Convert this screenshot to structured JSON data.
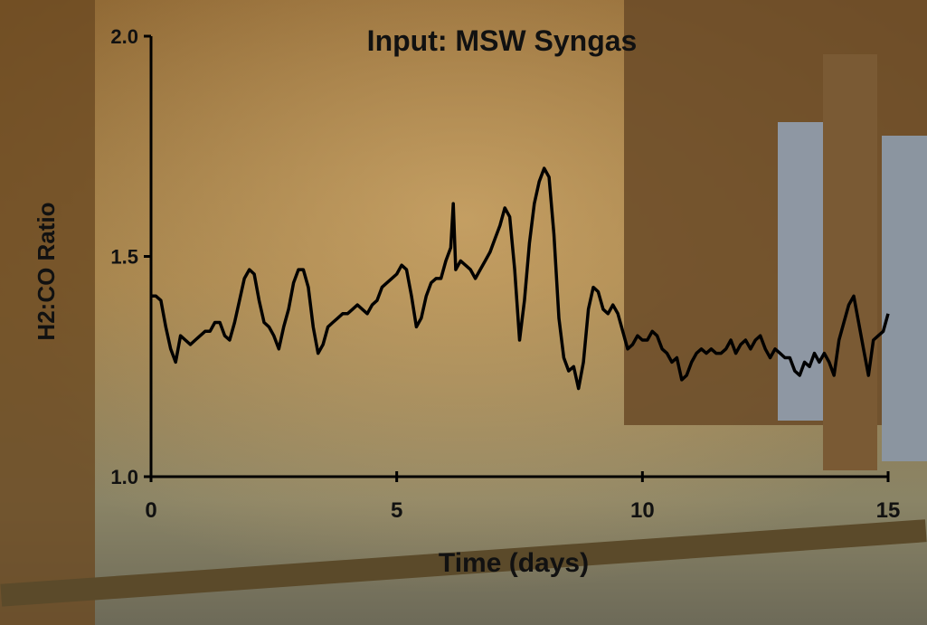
{
  "chart_data": {
    "type": "line",
    "title": "Input: MSW Syngas",
    "x_label": "Time (days)",
    "y_label": "H2:CO Ratio",
    "x": [
      0,
      0.1,
      0.2,
      0.3,
      0.4,
      0.5,
      0.6,
      0.7,
      0.8,
      0.9,
      1.0,
      1.1,
      1.2,
      1.3,
      1.4,
      1.5,
      1.6,
      1.7,
      1.8,
      1.9,
      2.0,
      2.1,
      2.2,
      2.3,
      2.4,
      2.5,
      2.6,
      2.7,
      2.8,
      2.9,
      3.0,
      3.1,
      3.2,
      3.3,
      3.4,
      3.5,
      3.6,
      3.7,
      3.8,
      3.9,
      4.0,
      4.1,
      4.2,
      4.3,
      4.4,
      4.5,
      4.6,
      4.7,
      4.8,
      4.9,
      5.0,
      5.1,
      5.2,
      5.3,
      5.4,
      5.5,
      5.6,
      5.7,
      5.8,
      5.9,
      6.0,
      6.1,
      6.15,
      6.2,
      6.3,
      6.4,
      6.5,
      6.6,
      6.7,
      6.8,
      6.9,
      7.0,
      7.1,
      7.2,
      7.3,
      7.4,
      7.5,
      7.6,
      7.7,
      7.8,
      7.9,
      8.0,
      8.1,
      8.2,
      8.3,
      8.4,
      8.5,
      8.6,
      8.7,
      8.8,
      8.9,
      9.0,
      9.1,
      9.2,
      9.3,
      9.4,
      9.5,
      9.6,
      9.7,
      9.8,
      9.9,
      10.0,
      10.1,
      10.2,
      10.3,
      10.4,
      10.5,
      10.6,
      10.7,
      10.8,
      10.9,
      11.0,
      11.1,
      11.2,
      11.3,
      11.4,
      11.5,
      11.6,
      11.7,
      11.8,
      11.9,
      12.0,
      12.1,
      12.2,
      12.3,
      12.4,
      12.5,
      12.6,
      12.7,
      12.8,
      12.9,
      13.0,
      13.1,
      13.2,
      13.3,
      13.4,
      13.5,
      13.6,
      13.7,
      13.8,
      13.9,
      14.0,
      14.1,
      14.2,
      14.3,
      14.4,
      14.5,
      14.6,
      14.7,
      14.8,
      14.9,
      15.0
    ],
    "series": [
      {
        "color": "#000000",
        "values": [
          1.41,
          1.41,
          1.4,
          1.34,
          1.29,
          1.26,
          1.32,
          1.31,
          1.3,
          1.31,
          1.32,
          1.33,
          1.33,
          1.35,
          1.35,
          1.32,
          1.31,
          1.35,
          1.4,
          1.45,
          1.47,
          1.46,
          1.4,
          1.35,
          1.34,
          1.32,
          1.29,
          1.34,
          1.38,
          1.44,
          1.47,
          1.47,
          1.43,
          1.34,
          1.28,
          1.3,
          1.34,
          1.35,
          1.36,
          1.37,
          1.37,
          1.38,
          1.39,
          1.38,
          1.37,
          1.39,
          1.4,
          1.43,
          1.44,
          1.45,
          1.46,
          1.48,
          1.47,
          1.41,
          1.34,
          1.36,
          1.41,
          1.44,
          1.45,
          1.45,
          1.49,
          1.52,
          1.62,
          1.47,
          1.49,
          1.48,
          1.47,
          1.45,
          1.47,
          1.49,
          1.51,
          1.54,
          1.57,
          1.61,
          1.59,
          1.47,
          1.31,
          1.4,
          1.53,
          1.62,
          1.67,
          1.7,
          1.68,
          1.55,
          1.36,
          1.27,
          1.24,
          1.25,
          1.2,
          1.26,
          1.38,
          1.43,
          1.42,
          1.38,
          1.37,
          1.39,
          1.37,
          1.33,
          1.29,
          1.3,
          1.32,
          1.31,
          1.31,
          1.33,
          1.32,
          1.29,
          1.28,
          1.26,
          1.27,
          1.22,
          1.23,
          1.26,
          1.28,
          1.29,
          1.28,
          1.29,
          1.28,
          1.28,
          1.29,
          1.31,
          1.28,
          1.3,
          1.31,
          1.29,
          1.31,
          1.32,
          1.29,
          1.27,
          1.29,
          1.28,
          1.27,
          1.27,
          1.24,
          1.23,
          1.26,
          1.25,
          1.28,
          1.26,
          1.28,
          1.26,
          1.23,
          1.31,
          1.35,
          1.39,
          1.41,
          1.35,
          1.29,
          1.23,
          1.31,
          1.32,
          1.33,
          1.37
        ]
      }
    ],
    "xlim": [
      0,
      15
    ],
    "xticks": [
      0,
      5,
      10,
      15
    ],
    "ylim": [
      1.0,
      2.0
    ],
    "yticks": [
      {
        "value": 1.0,
        "label": "1.0"
      },
      {
        "value": 1.5,
        "label": "1.5"
      },
      {
        "value": 2.0,
        "label": "2.0"
      }
    ]
  }
}
